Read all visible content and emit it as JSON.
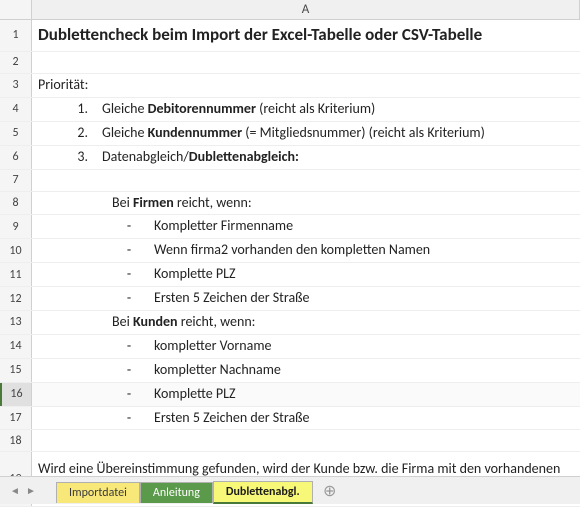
{
  "column_header": "A",
  "rows": {
    "r1": "Dublettencheck beim Import der Excel-Tabelle oder CSV-Tabelle",
    "r3": "Priorität:",
    "p1_num": "1.",
    "p1_a": "Gleiche ",
    "p1_b": "Debitorennummer",
    "p1_c": " (reicht als Kriterium)",
    "p2_num": "2.",
    "p2_a": "Gleiche ",
    "p2_b": "Kundennummer",
    "p2_c": " (= Mitgliedsnummer) (reicht als Kriterium)",
    "p3_num": "3.",
    "p3_a": "Datenabgleich/",
    "p3_b": "Dublettenabgleich:",
    "s8_a": "Bei ",
    "s8_b": "Firmen",
    "s8_c": " reicht, wenn:",
    "s9": "Kompletter Firmenname",
    "s10": "Wenn firma2 vorhanden den kompletten Namen",
    "s11": "Komplette PLZ",
    "s12": "Ersten 5 Zeichen der Straße",
    "s13_a": "Bei ",
    "s13_b": "Kunden",
    "s13_c": " reicht, wenn:",
    "s14": "kompletter Vorname",
    "s15": "kompletter Nachname",
    "s16": "Komplette PLZ",
    "s17": "Ersten 5 Zeichen der Straße",
    "r19": "Wird eine Übereinstimmung gefunden, wird der Kunde bzw. die Firma mit den vorhandenen Daten zusammengeführt. Wenn nicht wird ein neuer Datensatz angelegt."
  },
  "bullet": "-",
  "row_numbers": [
    "1",
    "2",
    "3",
    "4",
    "5",
    "6",
    "7",
    "8",
    "9",
    "10",
    "11",
    "12",
    "13",
    "14",
    "15",
    "16",
    "17",
    "18",
    "19"
  ],
  "tabs": {
    "t1": "Importdatei",
    "t2": "Anleitung",
    "t3": "Dublettenabgl."
  },
  "new_sheet_icon": "⊕",
  "scroll_left": "◄",
  "scroll_right": "►",
  "colors": {
    "tab1_bg": "#f8e87a",
    "tab2_bg": "#5a9a4a",
    "tab3_bg": "#f8f878",
    "header_bg": "#f0f0f0",
    "border": "#d0d0d0",
    "row_border": "#eeeeee",
    "text": "#222222",
    "row_num_text": "#444444",
    "selection_accent": "#4a7a3a"
  }
}
